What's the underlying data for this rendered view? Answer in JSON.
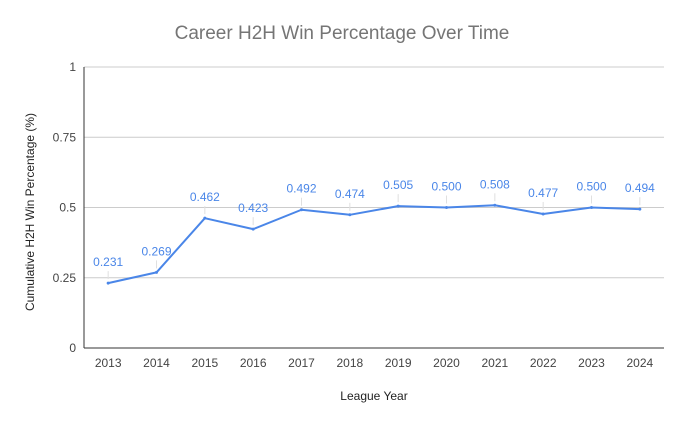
{
  "chart_data": {
    "type": "line",
    "title": "Career H2H Win Percentage Over Time",
    "xlabel": "League Year",
    "ylabel": "Cumulative H2H Win Percentage (%)",
    "categories": [
      "2013",
      "2014",
      "2015",
      "2016",
      "2017",
      "2018",
      "2019",
      "2020",
      "2021",
      "2022",
      "2023",
      "2024"
    ],
    "series": [
      {
        "values": [
          0.231,
          0.269,
          0.462,
          0.423,
          0.492,
          0.474,
          0.505,
          0.5,
          0.508,
          0.477,
          0.5,
          0.494
        ],
        "labels": [
          "0.231",
          "0.269",
          "0.462",
          "0.423",
          "0.492",
          "0.474",
          "0.505",
          "0.500",
          "0.508",
          "0.477",
          "0.500",
          "0.494"
        ],
        "color": "#4a86e8"
      }
    ],
    "ylim": [
      0,
      1
    ],
    "yticks": [
      0,
      0.25,
      0.5,
      0.75,
      1
    ],
    "ytick_labels": [
      "0",
      "0.25",
      "0.5",
      "0.75",
      "1"
    ],
    "grid": true,
    "legend": "none"
  }
}
